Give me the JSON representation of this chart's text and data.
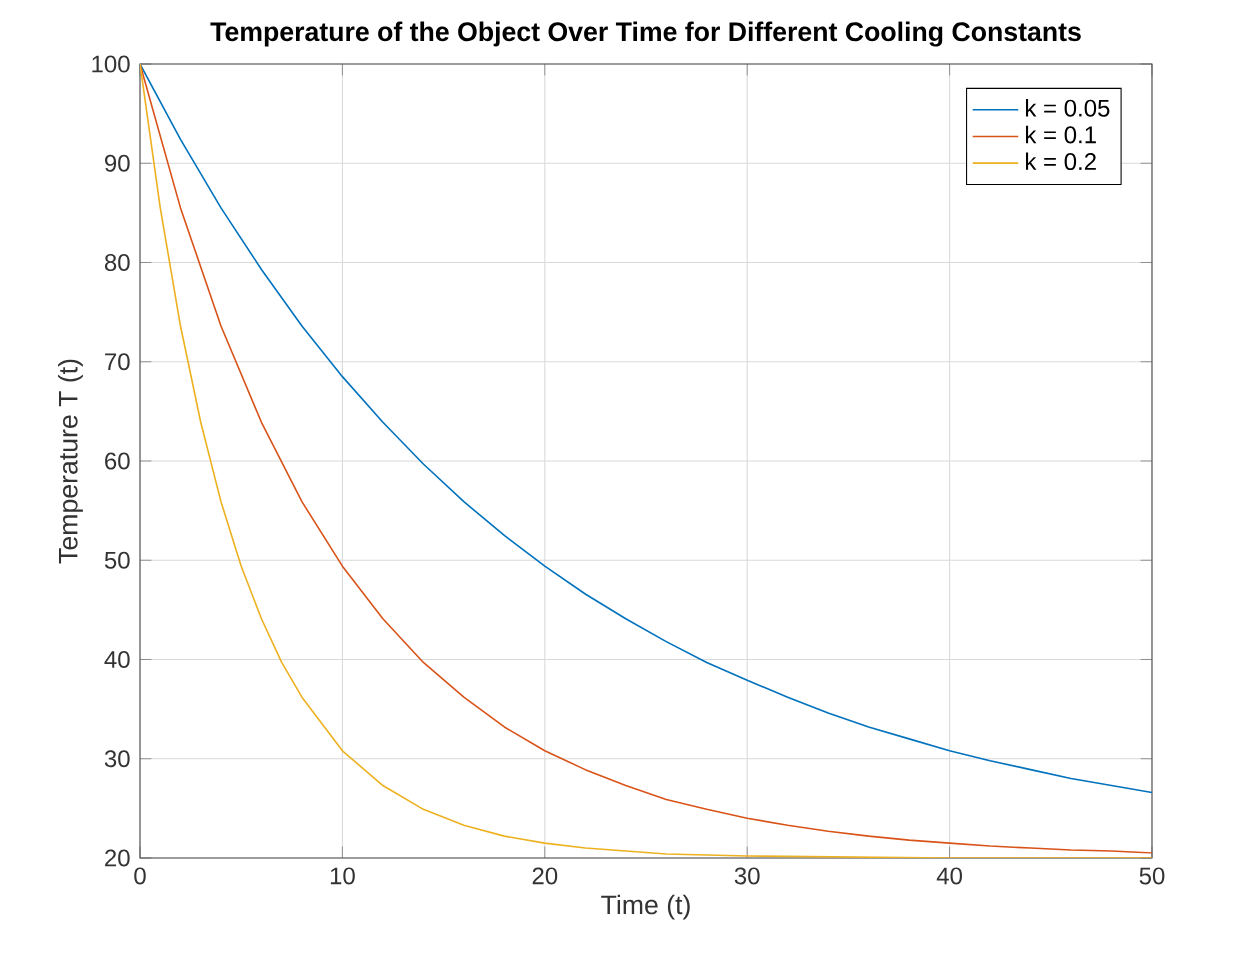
{
  "chart_data": {
    "type": "line",
    "title": "Temperature of the Object Over Time for Different Cooling Constants",
    "xlabel": "Time (t)",
    "ylabel": "Temperature T (t)",
    "xlim": [
      0,
      50
    ],
    "ylim": [
      20,
      100
    ],
    "xticks": [
      0,
      10,
      20,
      30,
      40,
      50
    ],
    "yticks": [
      20,
      30,
      40,
      50,
      60,
      70,
      80,
      90,
      100
    ],
    "grid": true,
    "legend": "top right",
    "line_style": "solid",
    "marker": "none",
    "series": [
      {
        "name": "k = 0.05",
        "color": "#0072bd",
        "x": [
          0,
          2,
          4,
          6,
          8,
          10,
          12,
          14,
          16,
          18,
          20,
          22,
          24,
          26,
          28,
          30,
          32,
          34,
          36,
          38,
          40,
          42,
          44,
          46,
          48,
          50
        ],
        "values": [
          100,
          92.4,
          85.5,
          79.3,
          73.6,
          68.5,
          63.9,
          59.7,
          55.9,
          52.5,
          49.4,
          46.6,
          44.1,
          41.8,
          39.7,
          37.9,
          36.2,
          34.6,
          33.2,
          32.0,
          30.8,
          29.8,
          28.9,
          28.0,
          27.3,
          26.6
        ]
      },
      {
        "name": "k = 0.1",
        "color": "#d95319",
        "x": [
          0,
          2,
          4,
          6,
          8,
          10,
          12,
          14,
          16,
          18,
          20,
          22,
          24,
          26,
          28,
          30,
          32,
          34,
          36,
          38,
          40,
          42,
          44,
          46,
          48,
          50
        ],
        "values": [
          100,
          85.5,
          73.6,
          63.9,
          55.9,
          49.4,
          44.1,
          39.7,
          36.2,
          33.2,
          30.8,
          28.9,
          27.3,
          25.9,
          24.9,
          24.0,
          23.3,
          22.7,
          22.2,
          21.8,
          21.5,
          21.2,
          21.0,
          20.8,
          20.7,
          20.5
        ]
      },
      {
        "name": "k = 0.2",
        "color": "#edb120",
        "x": [
          0,
          1,
          2,
          3,
          4,
          5,
          6,
          7,
          8,
          10,
          12,
          14,
          16,
          18,
          20,
          22,
          24,
          26,
          28,
          30,
          35,
          40,
          45,
          50
        ],
        "values": [
          100,
          85.5,
          73.6,
          63.9,
          55.9,
          49.4,
          44.1,
          39.7,
          36.2,
          30.8,
          27.3,
          24.9,
          23.3,
          22.2,
          21.5,
          21.0,
          20.7,
          20.4,
          20.3,
          20.2,
          20.1,
          20.0,
          20.0,
          20.0
        ]
      }
    ]
  }
}
